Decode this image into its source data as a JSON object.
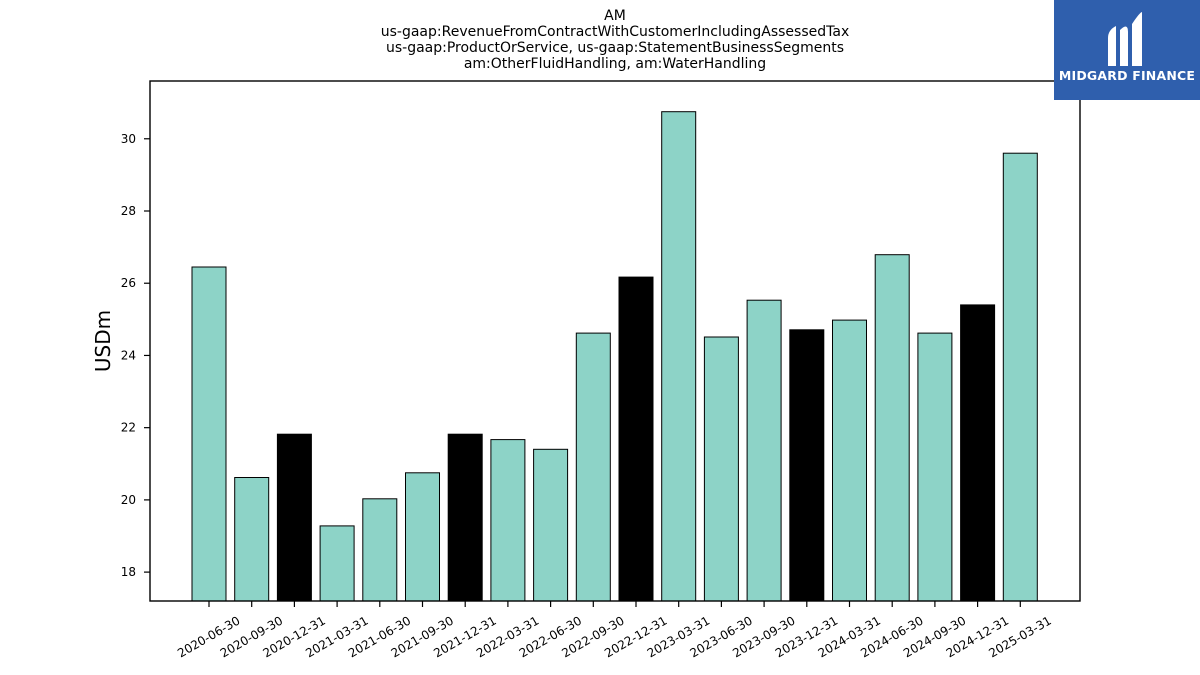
{
  "chart_data": {
    "type": "bar",
    "title_lines": [
      "AM",
      "us-gaap:RevenueFromContractWithCustomerIncludingAssessedTax",
      "us-gaap:ProductOrService, us-gaap:StatementBusinessSegments",
      "am:OtherFluidHandling, am:WaterHandling"
    ],
    "xlabel": "",
    "ylabel": "USDm",
    "ylim": [
      17.2,
      31.6
    ],
    "yticks": [
      18,
      20,
      22,
      24,
      26,
      28,
      30
    ],
    "categories": [
      "2020-06-30",
      "2020-09-30",
      "2020-12-31",
      "2021-03-31",
      "2021-06-30",
      "2021-09-30",
      "2021-12-31",
      "2022-03-31",
      "2022-06-30",
      "2022-09-30",
      "2022-12-31",
      "2023-03-31",
      "2023-06-30",
      "2023-09-30",
      "2023-12-31",
      "2024-03-31",
      "2024-06-30",
      "2024-09-30",
      "2024-12-31",
      "2025-03-31"
    ],
    "values": [
      26.45,
      20.62,
      21.82,
      19.28,
      20.03,
      20.75,
      21.82,
      21.67,
      21.4,
      24.62,
      26.17,
      30.75,
      24.51,
      25.53,
      24.71,
      24.98,
      26.79,
      24.62,
      25.4,
      29.6
    ],
    "highlight": [
      false,
      false,
      true,
      false,
      false,
      false,
      true,
      false,
      false,
      false,
      true,
      false,
      false,
      false,
      true,
      false,
      false,
      false,
      true,
      false
    ],
    "colors": {
      "bar": "#8dd3c7",
      "highlight": "#000000",
      "edge": "#000000"
    },
    "grid": false,
    "legend": "none"
  },
  "branding": {
    "logo_text": "MIDGARD FINANCE",
    "logo_bg": "#2f5fad"
  }
}
